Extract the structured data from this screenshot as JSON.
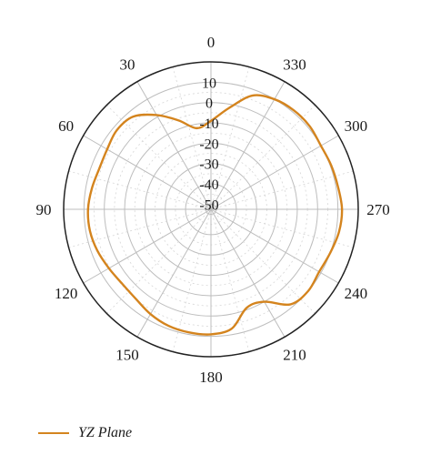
{
  "chart_data": {
    "type": "polar-line",
    "angle_direction": "counterclockwise",
    "zero_location": "top",
    "angle_ticks": [
      0,
      30,
      60,
      90,
      120,
      150,
      180,
      210,
      240,
      270,
      300,
      330
    ],
    "angle_tick_labels": [
      "0",
      "30",
      "60",
      "90",
      "120",
      "150",
      "180",
      "210",
      "240",
      "270",
      "300",
      "330"
    ],
    "r_ticks": [
      -50,
      -40,
      -30,
      -20,
      -10,
      0,
      10
    ],
    "r_tick_labels": [
      "-50",
      "-40",
      "-30",
      "-20",
      "-10",
      "0",
      "10"
    ],
    "rlim": [
      -52.5,
      20
    ],
    "grid": true,
    "legend_position": "bottom-left",
    "series": [
      {
        "name": "YZ Plane",
        "color": "#d4841e",
        "theta": [
          0,
          10,
          20,
          30,
          40,
          50,
          60,
          70,
          80,
          90,
          100,
          110,
          120,
          130,
          140,
          150,
          160,
          170,
          180,
          190,
          200,
          210,
          220,
          230,
          240,
          250,
          260,
          270,
          280,
          290,
          300,
          310,
          320,
          330,
          340,
          350,
          360
        ],
        "r": [
          -9,
          -12,
          -6,
          1,
          7,
          8,
          6.5,
          6,
          7,
          8,
          8,
          7,
          5.5,
          4.5,
          5,
          7,
          8.5,
          9,
          9,
          7,
          -1,
          0,
          8.5,
          10,
          9,
          10,
          11.5,
          12,
          11,
          10.5,
          10,
          11,
          11,
          10,
          7,
          -2,
          -9
        ]
      }
    ]
  }
}
